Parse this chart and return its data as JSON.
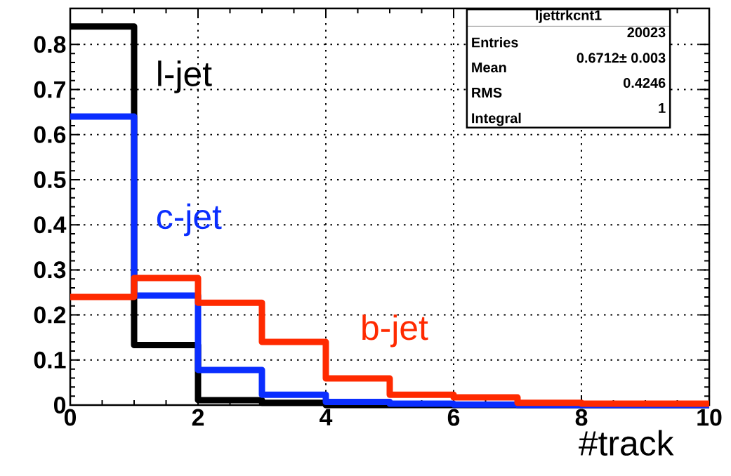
{
  "chart_data": {
    "type": "histogram",
    "xlabel": "#track",
    "bins": [
      0,
      1,
      2,
      3,
      4,
      5,
      6,
      7,
      8,
      9,
      10
    ],
    "series": [
      {
        "name": "l-jet",
        "color": "#000000",
        "values": [
          0.84,
          0.133,
          0.011,
          0.005,
          0,
          0,
          0,
          0,
          0,
          0
        ]
      },
      {
        "name": "c-jet",
        "color": "#0a2eff",
        "values": [
          0.64,
          0.243,
          0.078,
          0.023,
          0.007,
          0.003,
          0.001,
          0,
          0,
          0
        ]
      },
      {
        "name": "b-jet",
        "color": "#ff2a00",
        "values": [
          0.24,
          0.282,
          0.227,
          0.14,
          0.059,
          0.023,
          0.017,
          0.005,
          0.003,
          0.003
        ]
      }
    ],
    "xlim": [
      0,
      10
    ],
    "ylim": [
      0,
      0.88
    ],
    "xticks": [
      0,
      2,
      4,
      6,
      8,
      10
    ],
    "yticks": [
      0,
      0.1,
      0.2,
      0.3,
      0.4,
      0.5,
      0.6,
      0.7,
      0.8
    ],
    "grid": true,
    "line_style": "solid",
    "annotations": [
      "ljettrkcnt1",
      "Entries",
      "20023",
      "Mean",
      "0.6712± 0.003",
      "RMS",
      "0.4246",
      "Integral",
      "1"
    ]
  }
}
